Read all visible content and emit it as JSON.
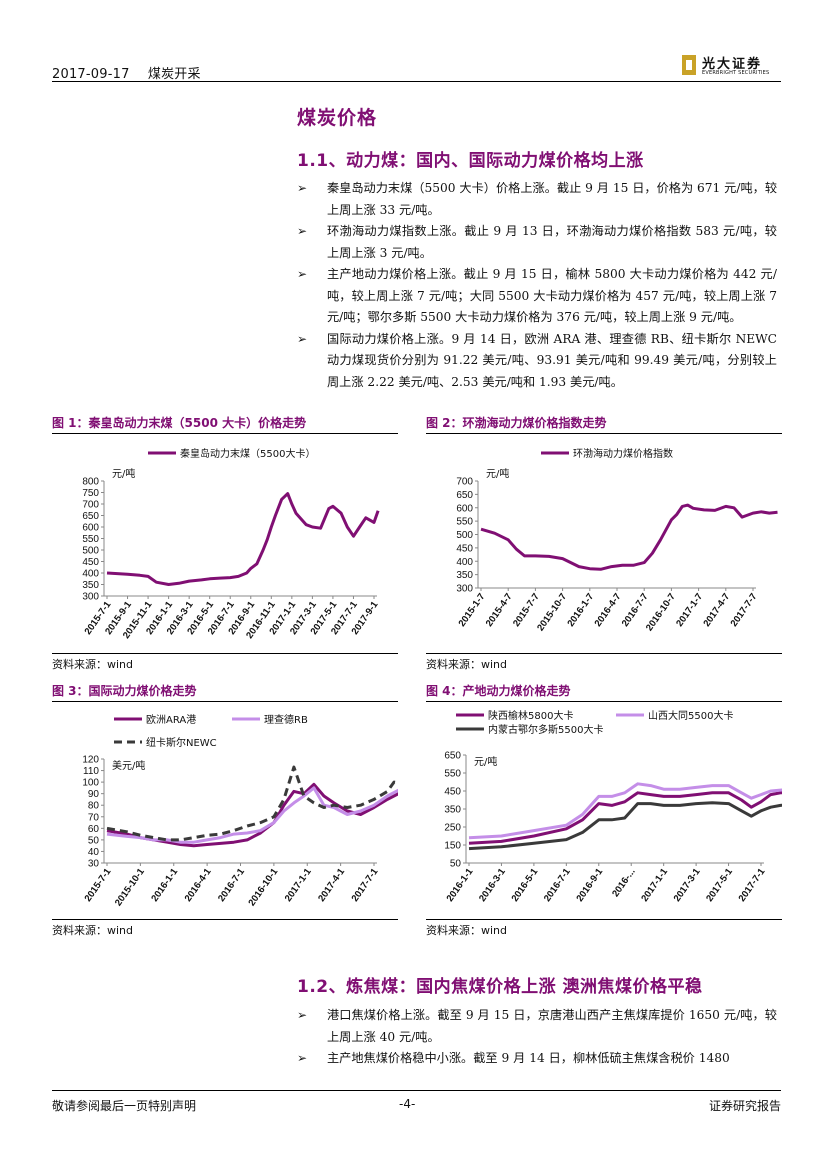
{
  "header": {
    "date": "2017-09-17",
    "category": "煤炭开采",
    "logo_cn": "光大证券",
    "logo_en": "EVERBRIGHT SECURITIES"
  },
  "section": {
    "title": "煤炭价格",
    "sub1": "1.1、动力煤：国内、国际动力煤价格均上涨",
    "bullets1": [
      "秦皇岛动力末煤（5500 大卡）价格上涨。截止 9 月 15 日，价格为 671 元/吨，较上周上涨 33 元/吨。",
      "环渤海动力煤指数上涨。截止 9 月 13 日，环渤海动力煤价格指数 583 元/吨，较上周上涨 3 元/吨。",
      "主产地动力煤价格上涨。截止 9 月 15 日，榆林 5800 大卡动力煤价格为 442 元/吨，较上周上涨 7 元/吨；大同 5500 大卡动力煤价格为 457 元/吨，较上周上涨 7 元/吨；鄂尔多斯 5500 大卡动力煤价格为 376 元/吨，较上周上涨 9 元/吨。",
      "国际动力煤价格上涨。9 月 14 日，欧洲 ARA 港、理查德 RB、纽卡斯尔 NEWC 动力煤现货价分别为 91.22 美元/吨、93.91 美元/吨和 99.49 美元/吨，分别较上周上涨 2.22 美元/吨、2.53 美元/吨和 1.93 美元/吨。"
    ],
    "sub2": "1.2、炼焦煤：国内焦煤价格上涨 澳洲焦煤价格平稳",
    "bullets2": [
      "港口焦煤价格上涨。截至 9 月 15 日，京唐港山西产主焦煤库提价 1650 元/吨，较上周上涨 40 元/吨。",
      "主产地焦煤价格稳中小涨。截至 9 月 14 日，柳林低硫主焦煤含税价 1480"
    ],
    "bullet_marker": "➢"
  },
  "figures": {
    "fig1_title": "图 1：秦皇岛动力末煤（5500 大卡）价格走势",
    "fig2_title": "图 2：环渤海动力煤价格指数走势",
    "fig3_title": "图 3：国际动力煤价格走势",
    "fig4_title": "图 4：产地动力煤价格走势",
    "source": "资料来源：wind"
  },
  "colors": {
    "brand": "#800f73",
    "purple": "#800f73",
    "lilac": "#c48ee8",
    "dark": "#3a3a3a"
  },
  "chart_data": [
    {
      "type": "line",
      "ylabel": "元/吨",
      "ylim": [
        300,
        800
      ],
      "yticks": [
        300,
        350,
        400,
        450,
        500,
        550,
        600,
        650,
        700,
        750,
        800
      ],
      "xticks": [
        "2015-7-1",
        "2015-9-1",
        "2015-11-1",
        "2016-1-1",
        "2016-3-1",
        "2016-5-1",
        "2016-7-1",
        "2016-9-1",
        "2016-11-1",
        "2017-1-1",
        "2017-3-1",
        "2017-5-1",
        "2017-7-1",
        "2017-9-1"
      ],
      "series": [
        {
          "name": "秦皇岛动力末煤（5500大卡）",
          "x": [
            0,
            1,
            1.6,
            2,
            2.4,
            3,
            3.5,
            4,
            4.6,
            5,
            5.5,
            6,
            6.4,
            6.8,
            7,
            7.3,
            7.6,
            7.8,
            8,
            8.2,
            8.5,
            8.8,
            9,
            9.2,
            9.5,
            9.7,
            10,
            10.4,
            10.8,
            11,
            11.4,
            11.7,
            12,
            12.3,
            12.6,
            13,
            13.2
          ],
          "values": [
            400,
            395,
            390,
            385,
            360,
            350,
            355,
            365,
            370,
            375,
            378,
            380,
            385,
            400,
            420,
            440,
            500,
            545,
            600,
            650,
            720,
            745,
            700,
            660,
            630,
            610,
            600,
            595,
            680,
            690,
            660,
            600,
            560,
            600,
            640,
            620,
            671
          ]
        }
      ]
    },
    {
      "type": "line",
      "ylabel": "元/吨",
      "ylim": [
        300,
        700
      ],
      "yticks": [
        300,
        350,
        400,
        450,
        500,
        550,
        600,
        650,
        700
      ],
      "xticks": [
        "2015-1-7",
        "2015-4-7",
        "2015-7-7",
        "2015-10-7",
        "2016-1-7",
        "2016-4-7",
        "2016-7-7",
        "2016-10-7",
        "2017-1-7",
        "2017-4-7",
        "2017-7-7"
      ],
      "series": [
        {
          "name": "环渤海动力煤价格指数",
          "x": [
            0,
            0.5,
            1,
            1.3,
            1.6,
            2,
            2.5,
            3,
            3.3,
            3.6,
            4,
            4.4,
            4.8,
            5.2,
            5.6,
            6,
            6.3,
            6.6,
            7,
            7.2,
            7.4,
            7.6,
            7.8,
            8.2,
            8.6,
            9,
            9.3,
            9.6,
            10,
            10.3,
            10.6,
            10.9
          ],
          "values": [
            520,
            505,
            480,
            445,
            420,
            420,
            418,
            410,
            395,
            380,
            372,
            370,
            380,
            385,
            385,
            395,
            430,
            480,
            555,
            575,
            605,
            610,
            598,
            592,
            590,
            605,
            600,
            565,
            580,
            585,
            580,
            583
          ]
        }
      ]
    },
    {
      "type": "line",
      "ylabel": "美元/吨",
      "ylim": [
        30,
        120
      ],
      "yticks": [
        30,
        40,
        50,
        60,
        70,
        80,
        90,
        100,
        110,
        120
      ],
      "xticks": [
        "2015-7-1",
        "2015-10-1",
        "2016-1-1",
        "2016-4-1",
        "2016-7-1",
        "2016-10-1",
        "2017-1-1",
        "2017-4-1",
        "2017-7-1"
      ],
      "series": [
        {
          "name": "欧洲ARA港",
          "x": [
            0,
            0.6,
            1,
            1.4,
            1.8,
            2.2,
            2.6,
            3,
            3.4,
            3.8,
            4.2,
            4.6,
            5,
            5.3,
            5.6,
            5.9,
            6.2,
            6.5,
            6.8,
            7.2,
            7.6,
            8,
            8.4,
            8.8
          ],
          "values": [
            58,
            55,
            52,
            50,
            48,
            46,
            45,
            46,
            47,
            48,
            50,
            56,
            65,
            80,
            92,
            90,
            98,
            88,
            82,
            75,
            72,
            78,
            85,
            91
          ]
        },
        {
          "name": "理查德RB",
          "x": [
            0,
            0.6,
            1,
            1.4,
            1.8,
            2.2,
            2.6,
            3,
            3.4,
            3.8,
            4.2,
            4.6,
            5,
            5.3,
            5.6,
            5.9,
            6.2,
            6.5,
            6.8,
            7.2,
            7.6,
            8,
            8.4,
            8.8
          ],
          "values": [
            55,
            53,
            52,
            50,
            50,
            48,
            48,
            50,
            52,
            55,
            56,
            58,
            65,
            75,
            82,
            88,
            95,
            80,
            78,
            72,
            75,
            80,
            88,
            94
          ]
        },
        {
          "name": "纽卡斯尔NEWC",
          "x": [
            0,
            0.6,
            1,
            1.4,
            1.8,
            2.2,
            2.6,
            3,
            3.4,
            3.8,
            4.2,
            4.6,
            5,
            5.3,
            5.6,
            5.9,
            6.2,
            6.5,
            6.8,
            7.2,
            7.6,
            8,
            8.4,
            8.6,
            8.8
          ],
          "values": [
            60,
            57,
            54,
            52,
            50,
            50,
            52,
            54,
            55,
            58,
            62,
            65,
            70,
            85,
            113,
            88,
            82,
            78,
            80,
            78,
            80,
            85,
            92,
            100,
            99
          ]
        }
      ]
    },
    {
      "type": "line",
      "ylabel": "元/吨",
      "ylim": [
        50,
        650
      ],
      "yticks": [
        50,
        150,
        250,
        350,
        450,
        550,
        650
      ],
      "xticks": [
        "2016-1-1",
        "2016-3-1",
        "2016-5-1",
        "2016-7-1",
        "2016-9-1",
        "2016-...",
        "2017-1-1",
        "2017-3-1",
        "2017-5-1",
        "2017-7-1"
      ],
      "series": [
        {
          "name": "陕西榆林5800大卡",
          "x": [
            0,
            1,
            2,
            3,
            3.5,
            4,
            4.4,
            4.8,
            5.2,
            5.6,
            6,
            6.5,
            7,
            7.5,
            8,
            8.4,
            8.7,
            9,
            9.3,
            9.6,
            9.9
          ],
          "values": [
            160,
            170,
            200,
            240,
            290,
            380,
            370,
            390,
            440,
            430,
            420,
            420,
            430,
            440,
            440,
            400,
            360,
            390,
            430,
            440,
            442
          ]
        },
        {
          "name": "山西大同5500大卡",
          "x": [
            0,
            1,
            2,
            3,
            3.5,
            4,
            4.4,
            4.8,
            5.2,
            5.6,
            6,
            6.5,
            7,
            7.5,
            8,
            8.4,
            8.7,
            9,
            9.3,
            9.6,
            9.9
          ],
          "values": [
            190,
            200,
            230,
            260,
            320,
            420,
            420,
            440,
            490,
            480,
            460,
            460,
            470,
            480,
            480,
            440,
            410,
            430,
            450,
            455,
            457
          ]
        },
        {
          "name": "内蒙古鄂尔多斯5500大卡",
          "x": [
            0,
            1,
            2,
            3,
            3.5,
            4,
            4.4,
            4.8,
            5.2,
            5.6,
            6,
            6.5,
            7,
            7.5,
            8,
            8.4,
            8.7,
            9,
            9.3,
            9.6,
            9.9
          ],
          "values": [
            130,
            140,
            160,
            180,
            220,
            290,
            290,
            300,
            380,
            380,
            370,
            370,
            380,
            385,
            380,
            340,
            310,
            340,
            360,
            370,
            376
          ]
        }
      ]
    }
  ],
  "footer": {
    "left": "敬请参阅最后一页特别声明",
    "page": "-4-",
    "right": "证券研究报告"
  }
}
